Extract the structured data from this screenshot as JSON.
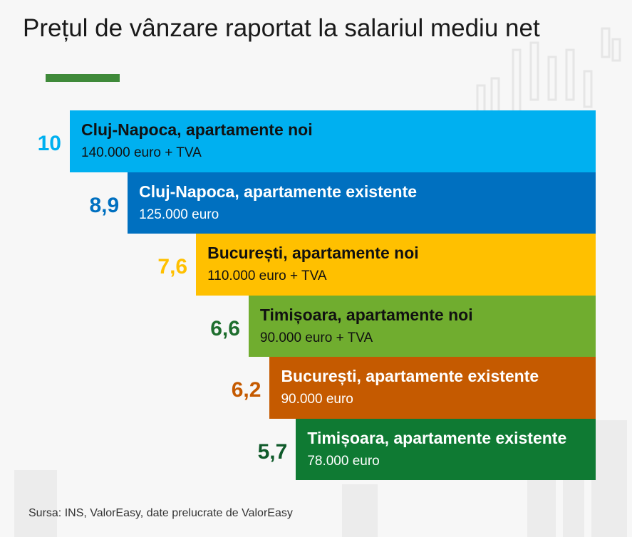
{
  "title": "Prețul de vânzare raportat la salariul mediu net",
  "source": "Sursa: INS, ValorEasy, date prelucrate de ValorEasy",
  "colors": {
    "accent": "#3f8a3a"
  },
  "chart_data": {
    "type": "bar",
    "orientation": "horizontal",
    "bars": [
      {
        "label": "Cluj-Napoca, apartamente noi",
        "sublabel": "140.000 euro + TVA",
        "value": 10,
        "value_label": "10",
        "color": "#00b0f0",
        "text_color": "#111111",
        "value_color": "#00b0f0"
      },
      {
        "label": "Cluj-Napoca, apartamente existente",
        "sublabel": "125.000 euro",
        "value": 8.9,
        "value_label": "8,9",
        "color": "#0070c0",
        "text_color": "#ffffff",
        "value_color": "#0070c0"
      },
      {
        "label": "București, apartamente noi",
        "sublabel": "110.000 euro + TVA",
        "value": 7.6,
        "value_label": "7,6",
        "color": "#ffc000",
        "text_color": "#111111",
        "value_color": "#ffc000"
      },
      {
        "label": "Timișoara, apartamente noi",
        "sublabel": "90.000 euro + TVA",
        "value": 6.6,
        "value_label": "6,6",
        "color": "#70ad2f",
        "text_color": "#111111",
        "value_color": "#1e6e2e"
      },
      {
        "label": "București, apartamente existente",
        "sublabel": "90.000 euro",
        "value": 6.2,
        "value_label": "6,2",
        "color": "#c55a00",
        "text_color": "#ffffff",
        "value_color": "#c55a00"
      },
      {
        "label": "Timișoara, apartamente existente",
        "sublabel": "78.000 euro",
        "value": 5.7,
        "value_label": "5,7",
        "color": "#0f7a33",
        "text_color": "#ffffff",
        "value_color": "#0f5a2a"
      }
    ]
  }
}
